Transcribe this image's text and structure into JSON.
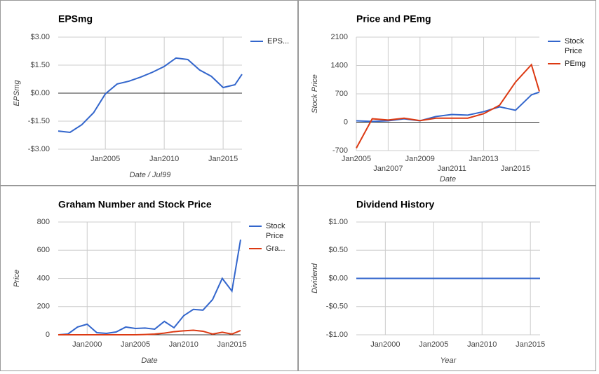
{
  "chart_data": [
    {
      "type": "line",
      "title": "EPSmg",
      "x_label": "Date / Jul99",
      "y_label": "EPSmg",
      "xlim": [
        2001,
        2016.6
      ],
      "xticks": [
        {
          "value": 2005,
          "label": "Jan2005"
        },
        {
          "value": 2010,
          "label": "Jan2010"
        },
        {
          "value": 2015,
          "label": "Jan2015"
        }
      ],
      "ylim": [
        -3,
        3
      ],
      "yticks": [
        {
          "value": 3,
          "label": "$3.00"
        },
        {
          "value": 1.5,
          "label": "$1.50"
        },
        {
          "value": 0,
          "label": "$0.00"
        },
        {
          "value": -1.5,
          "label": "-$1.50"
        },
        {
          "value": -3,
          "label": "-$3.00"
        }
      ],
      "x": [
        2001,
        2002,
        2003,
        2004,
        2005,
        2006,
        2007,
        2008,
        2009,
        2010,
        2011,
        2012,
        2013,
        2014,
        2015,
        2016,
        2016.6
      ],
      "series": [
        {
          "name": "EPS...",
          "color": "#3366cc",
          "values": [
            -2.03,
            -2.1,
            -1.69,
            -1.05,
            -0.04,
            0.49,
            0.64,
            0.86,
            1.12,
            1.43,
            1.88,
            1.8,
            1.24,
            0.9,
            0.3,
            0.45,
            1.01
          ]
        }
      ],
      "grid": true
    },
    {
      "type": "line",
      "title": "Price and PEmg",
      "x_label": "Date",
      "y_label": "Stock Price",
      "xlim": [
        2005,
        2016.5
      ],
      "xticks": [
        {
          "value": 2005,
          "label": "Jan2005"
        },
        {
          "value": 2007,
          "label": "Jan2007"
        },
        {
          "value": 2009,
          "label": "Jan2009"
        },
        {
          "value": 2011,
          "label": "Jan2011"
        },
        {
          "value": 2013,
          "label": "Jan2013"
        },
        {
          "value": 2015,
          "label": "Jan2015"
        }
      ],
      "ylim": [
        -700,
        2100
      ],
      "yticks": [
        2100,
        1400,
        700,
        0,
        -700
      ],
      "x": [
        2005,
        2006,
        2007,
        2008,
        2009,
        2010,
        2011,
        2012,
        2013,
        2014,
        2015,
        2016,
        2016.5
      ],
      "series": [
        {
          "name": "Stock Price",
          "color": "#3366cc",
          "values": [
            35,
            20,
            35,
            85,
            35,
            140,
            190,
            175,
            260,
            380,
            295,
            675,
            745
          ]
        },
        {
          "name": "PEmg",
          "color": "#dc3912",
          "values": [
            -640,
            85,
            55,
            100,
            40,
            100,
            100,
            100,
            210,
            420,
            990,
            1420,
            760
          ]
        }
      ],
      "grid": true
    },
    {
      "type": "line",
      "title": "Graham Number and Stock Price",
      "x_label": "Date",
      "y_label": "Price",
      "xlim": [
        1997,
        2015.9
      ],
      "xticks": [
        {
          "value": 2000,
          "label": "Jan2000"
        },
        {
          "value": 2005,
          "label": "Jan2005"
        },
        {
          "value": 2010,
          "label": "Jan2010"
        },
        {
          "value": 2015,
          "label": "Jan2015"
        }
      ],
      "ylim": [
        0,
        800
      ],
      "yticks": [
        800,
        600,
        400,
        200,
        0
      ],
      "x": [
        1997,
        1998,
        1999,
        2000,
        2001,
        2002,
        2003,
        2004,
        2005,
        2006,
        2007,
        2008,
        2009,
        2010,
        2011,
        2012,
        2013,
        2014,
        2015,
        2015.9
      ],
      "series": [
        {
          "name": "Stock Price",
          "color": "#3366cc",
          "values": [
            0,
            5,
            55,
            75,
            15,
            10,
            20,
            55,
            45,
            48,
            40,
            95,
            50,
            135,
            180,
            175,
            250,
            400,
            310,
            675
          ]
        },
        {
          "name": "Gra...",
          "color": "#dc3912",
          "values": [
            0,
            0,
            0,
            0,
            0,
            0,
            0,
            0,
            0,
            2,
            5,
            12,
            22,
            28,
            32,
            25,
            5,
            18,
            5,
            30
          ]
        }
      ],
      "grid": true
    },
    {
      "type": "line",
      "title": "Dividend History",
      "x_label": "Year",
      "y_label": "Dividend",
      "xlim": [
        1997,
        2016
      ],
      "xticks": [
        {
          "value": 2000,
          "label": "Jan2000"
        },
        {
          "value": 2005,
          "label": "Jan2005"
        },
        {
          "value": 2010,
          "label": "Jan2010"
        },
        {
          "value": 2015,
          "label": "Jan2015"
        }
      ],
      "ylim": [
        -1,
        1
      ],
      "yticks": [
        {
          "value": 1,
          "label": "$1.00"
        },
        {
          "value": 0.5,
          "label": "$0.50"
        },
        {
          "value": 0,
          "label": "$0.00"
        },
        {
          "value": -0.5,
          "label": "-$0.50"
        },
        {
          "value": -1,
          "label": "-$1.00"
        }
      ],
      "x": [
        1997,
        2016
      ],
      "series": [
        {
          "color": "#3366cc",
          "values": [
            0,
            0
          ]
        }
      ],
      "grid": true
    }
  ]
}
